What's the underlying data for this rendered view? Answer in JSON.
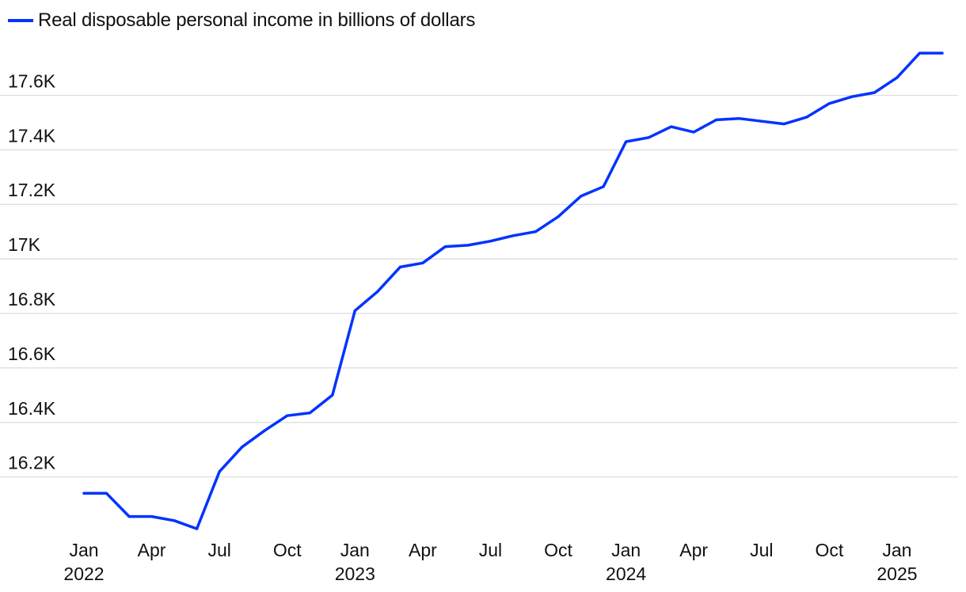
{
  "chart_data": {
    "type": "line",
    "legend": "top-left",
    "series": [
      {
        "name": "Real disposable personal income in billions of dollars",
        "color": "#0033ff",
        "x": [
          "2022-01",
          "2022-02",
          "2022-03",
          "2022-04",
          "2022-05",
          "2022-06",
          "2022-07",
          "2022-08",
          "2022-09",
          "2022-10",
          "2022-11",
          "2022-12",
          "2023-01",
          "2023-02",
          "2023-03",
          "2023-04",
          "2023-05",
          "2023-06",
          "2023-07",
          "2023-08",
          "2023-09",
          "2023-10",
          "2023-11",
          "2023-12",
          "2024-01",
          "2024-02",
          "2024-03",
          "2024-04",
          "2024-05",
          "2024-06",
          "2024-07",
          "2024-08",
          "2024-09",
          "2024-10",
          "2024-11",
          "2024-12",
          "2025-01",
          "2025-02",
          "2025-03"
        ],
        "values": [
          16140,
          16140,
          16055,
          16055,
          16040,
          16010,
          16220,
          16310,
          16370,
          16425,
          16435,
          16500,
          16810,
          16880,
          16970,
          16985,
          17045,
          17050,
          17065,
          17085,
          17100,
          17155,
          17230,
          17265,
          17430,
          17445,
          17485,
          17465,
          17510,
          17515,
          17505,
          17495,
          17520,
          17570,
          17595,
          17610,
          17665,
          17755,
          17755
        ]
      }
    ],
    "ylim": [
      15990,
      17790
    ],
    "yticks": [
      16200,
      16400,
      16600,
      16800,
      17000,
      17200,
      17400,
      17600
    ],
    "ytick_labels": [
      "16.2K",
      "16.4K",
      "16.6K",
      "16.8K",
      "17K",
      "17.2K",
      "17.4K",
      "17.6K"
    ],
    "xticks": [
      {
        "x": "2022-01",
        "label": "Jan",
        "sub": "2022"
      },
      {
        "x": "2022-04",
        "label": "Apr",
        "sub": ""
      },
      {
        "x": "2022-07",
        "label": "Jul",
        "sub": ""
      },
      {
        "x": "2022-10",
        "label": "Oct",
        "sub": ""
      },
      {
        "x": "2023-01",
        "label": "Jan",
        "sub": "2023"
      },
      {
        "x": "2023-04",
        "label": "Apr",
        "sub": ""
      },
      {
        "x": "2023-07",
        "label": "Jul",
        "sub": ""
      },
      {
        "x": "2023-10",
        "label": "Oct",
        "sub": ""
      },
      {
        "x": "2024-01",
        "label": "Jan",
        "sub": "2024"
      },
      {
        "x": "2024-04",
        "label": "Apr",
        "sub": ""
      },
      {
        "x": "2024-07",
        "label": "Jul",
        "sub": ""
      },
      {
        "x": "2024-10",
        "label": "Oct",
        "sub": ""
      },
      {
        "x": "2025-01",
        "label": "Jan",
        "sub": "2025"
      }
    ],
    "grid": true
  }
}
